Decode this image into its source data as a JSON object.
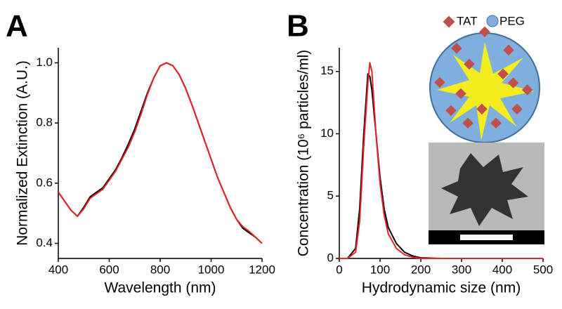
{
  "chart_data": [
    {
      "type": "line",
      "panel_label": "A",
      "xlabel": "Wavelength (nm)",
      "ylabel": "Normalized Extinction (A.U.)",
      "x": [
        400,
        425,
        450,
        475,
        500,
        525,
        550,
        575,
        600,
        625,
        650,
        675,
        700,
        725,
        750,
        775,
        800,
        825,
        850,
        875,
        900,
        925,
        950,
        975,
        1000,
        1025,
        1050,
        1075,
        1100,
        1125,
        1150,
        1175,
        1200
      ],
      "series": [
        {
          "color": "#000000",
          "values": [
            0.57,
            0.54,
            0.51,
            0.49,
            0.52,
            0.555,
            0.57,
            0.585,
            0.615,
            0.645,
            0.685,
            0.73,
            0.78,
            0.84,
            0.9,
            0.95,
            0.99,
            1.0,
            0.99,
            0.96,
            0.915,
            0.86,
            0.8,
            0.74,
            0.68,
            0.62,
            0.57,
            0.52,
            0.48,
            0.45,
            0.435,
            0.42,
            0.4
          ]
        },
        {
          "color": "#e8202a",
          "values": [
            0.57,
            0.54,
            0.51,
            0.49,
            0.515,
            0.55,
            0.565,
            0.58,
            0.61,
            0.64,
            0.68,
            0.72,
            0.77,
            0.83,
            0.895,
            0.95,
            0.99,
            1.0,
            0.99,
            0.96,
            0.915,
            0.86,
            0.8,
            0.74,
            0.68,
            0.62,
            0.57,
            0.52,
            0.48,
            0.455,
            0.44,
            0.42,
            0.4
          ]
        }
      ],
      "xlim": [
        400,
        1200
      ],
      "ylim": [
        0.35,
        1.05
      ],
      "xticks": [
        400,
        600,
        800,
        1000,
        1200
      ],
      "yticks": [
        0.4,
        0.6,
        0.8,
        {
          "value": 1,
          "label": "1.0"
        }
      ]
    },
    {
      "type": "line",
      "panel_label": "B",
      "xlabel": "Hydrodynamic size (nm)",
      "ylabel": "Concentration (10⁶ particles/ml)",
      "annotations": [
        "TAT",
        "PEG"
      ],
      "x": [
        0,
        20,
        40,
        50,
        60,
        70,
        75,
        80,
        90,
        100,
        110,
        120,
        140,
        160,
        180,
        200,
        250,
        300,
        400,
        500
      ],
      "series": [
        {
          "color": "#000000",
          "values": [
            0,
            0,
            0.8,
            4,
            10,
            14.8,
            14.6,
            13.5,
            10,
            6.5,
            4,
            2.5,
            1.2,
            0.5,
            0.2,
            0.05,
            0,
            0,
            0,
            0
          ]
        },
        {
          "color": "#e8202a",
          "values": [
            0,
            0,
            0.5,
            3,
            9,
            14,
            15.7,
            15,
            10,
            6,
            3.5,
            2,
            0.8,
            0.3,
            0.1,
            0,
            0,
            0,
            0,
            0
          ]
        }
      ],
      "xlim": [
        0,
        500
      ],
      "ylim": [
        0,
        16.9
      ],
      "xticks": [
        0,
        100,
        200,
        300,
        400,
        500
      ],
      "yticks": [
        0,
        5,
        10,
        15
      ]
    }
  ]
}
